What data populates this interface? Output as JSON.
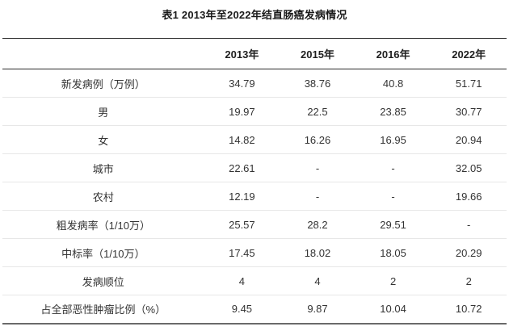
{
  "title": "表1 2013年至2022年结直肠癌发病情况",
  "chart_data": {
    "type": "table",
    "title": "表1 2013年至2022年结直肠癌发病情况",
    "columns": [
      "",
      "2013年",
      "2015年",
      "2016年",
      "2022年"
    ],
    "rows": [
      {
        "label": "新发病例（万例）",
        "values": [
          "34.79",
          "38.76",
          "40.8",
          "51.71"
        ]
      },
      {
        "label": "男",
        "values": [
          "19.97",
          "22.5",
          "23.85",
          "30.77"
        ]
      },
      {
        "label": "女",
        "values": [
          "14.82",
          "16.26",
          "16.95",
          "20.94"
        ]
      },
      {
        "label": "城市",
        "values": [
          "22.61",
          "-",
          "-",
          "32.05"
        ]
      },
      {
        "label": "农村",
        "values": [
          "12.19",
          "-",
          "-",
          "19.66"
        ]
      },
      {
        "label": "粗发病率（1/10万）",
        "values": [
          "25.57",
          "28.2",
          "29.51",
          "-"
        ]
      },
      {
        "label": "中标率（1/10万）",
        "values": [
          "17.45",
          "18.02",
          "18.05",
          "20.29"
        ]
      },
      {
        "label": "发病顺位",
        "values": [
          "4",
          "4",
          "2",
          "2"
        ]
      },
      {
        "label": "占全部恶性肿瘤比例（%）",
        "values": [
          "9.45",
          "9.87",
          "10.04",
          "10.72"
        ]
      }
    ]
  },
  "colors": {
    "background": "#ffffff",
    "title_text": "#1a1a1a",
    "body_text": "#333333",
    "heavy_rule": "#2b2b2b",
    "bottom_rule": "#6a6a6a",
    "row_separator": "#e7e7e7"
  }
}
